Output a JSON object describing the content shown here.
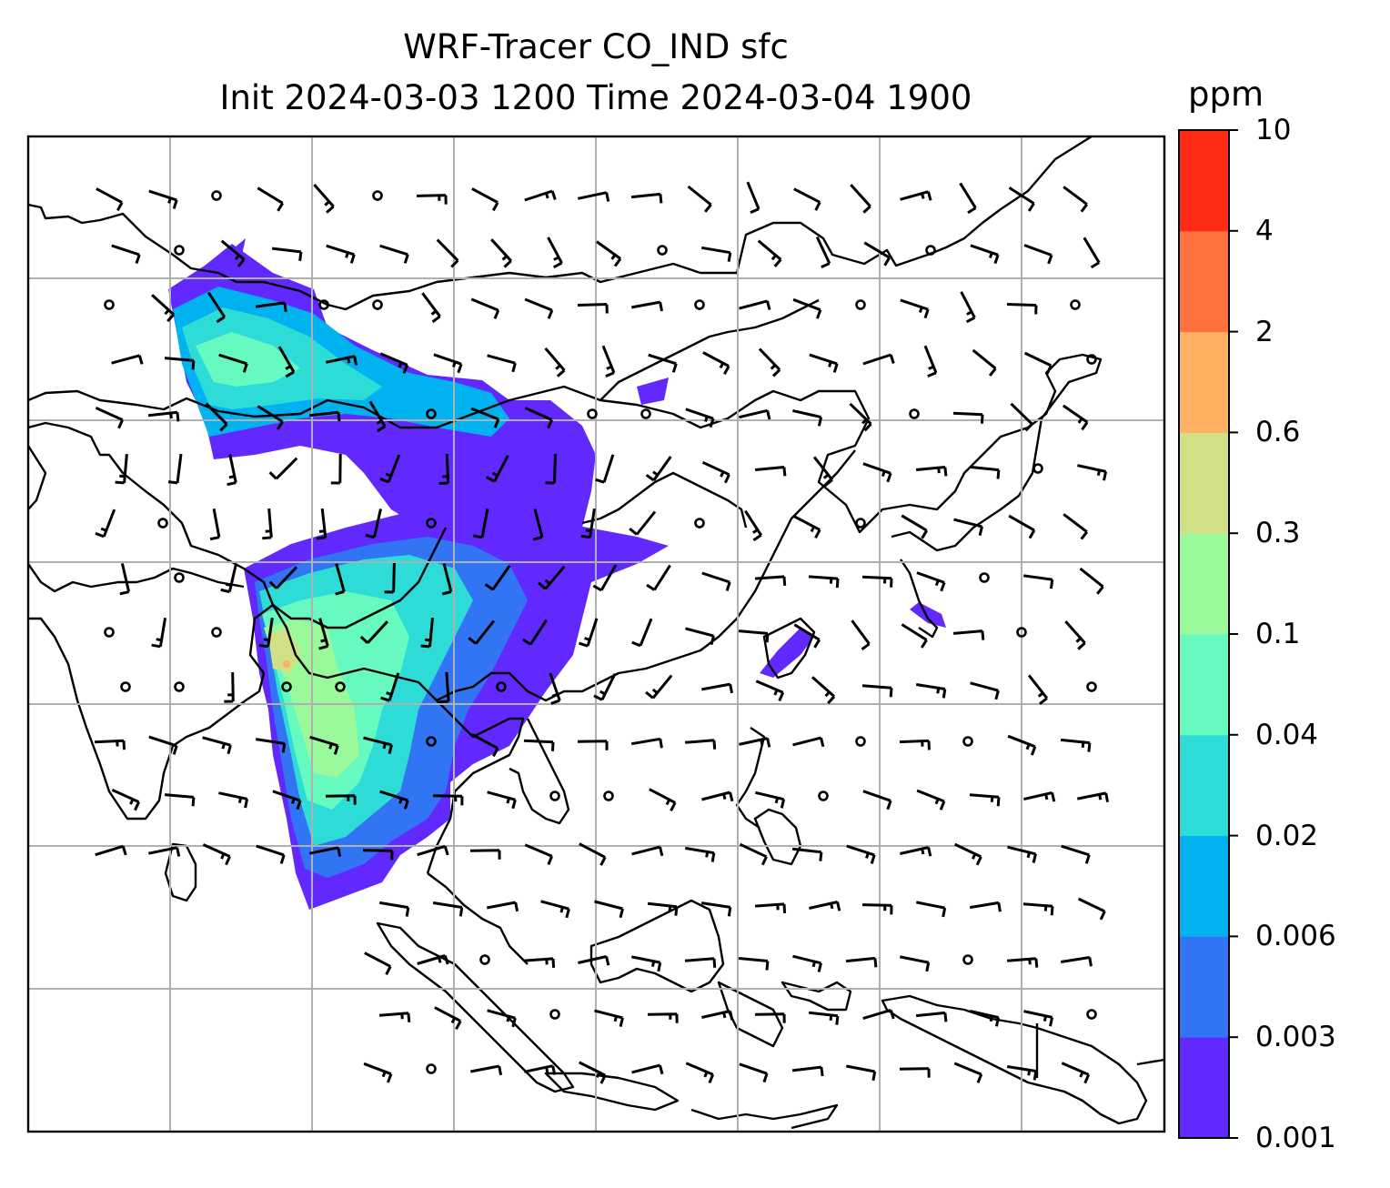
{
  "title": {
    "line1": "WRF-Tracer CO_IND sfc",
    "line2": "Init 2024-03-03 1200 Time 2024-03-04 1900"
  },
  "colorbar": {
    "unit": "ppm",
    "levels": [
      "0.001",
      "0.003",
      "0.006",
      "0.02",
      "0.04",
      "0.1",
      "0.3",
      "0.6",
      "2",
      "4",
      "10"
    ],
    "colors": [
      "#6229ff",
      "#3174f4",
      "#00b2ef",
      "#2edcd7",
      "#66fac0",
      "#9af99a",
      "#d1e084",
      "#ffb161",
      "#ff723d",
      "#ff2b17"
    ]
  },
  "map": {
    "gridlines": true,
    "wind_barbs": true,
    "coastline_color": "#000000",
    "grid_color": "#b0b0b0"
  }
}
